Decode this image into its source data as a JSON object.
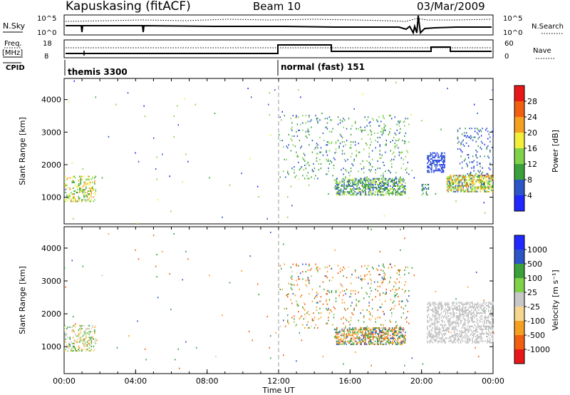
{
  "header": {
    "station": "Kapuskasing (fitACF)",
    "beam": "Beam 10",
    "date": "03/Mar/2009"
  },
  "top_panels": {
    "nsky_label": "N.Sky",
    "nsearch_label": "N.Search",
    "noise_ticks": [
      "10^5",
      "10^0"
    ],
    "freq_label_1": "Freq.",
    "freq_label_2": "[MHz]",
    "freq_ticks": [
      "18",
      "8"
    ],
    "nave_label": "Nave",
    "nave_ticks": [
      "60",
      "0"
    ],
    "cpid_label": "CPID",
    "cpid_segments": [
      {
        "label": "themis 3300",
        "start_hour": 0
      },
      {
        "label": "normal (fast) 151",
        "start_hour": 12
      }
    ]
  },
  "colors": {
    "power": [
      "#1f28ff",
      "#2c55c8",
      "#3aa03a",
      "#7fd24a",
      "#f2ee3a",
      "#f5a020",
      "#f06010",
      "#e81818"
    ],
    "velocity": [
      "#e81818",
      "#f06010",
      "#f5a020",
      "#f7d790",
      "#c8c8c8",
      "#7fd24a",
      "#3aa03a",
      "#2c55c8",
      "#1f28ff"
    ],
    "ground_scatter": "#c0c0c0"
  },
  "chart_data": [
    {
      "type": "heatmap",
      "name": "Power",
      "ylabel": "Slant Range [km]",
      "xlabel": "Time UT",
      "xlim": [
        0,
        24
      ],
      "ylim": [
        180,
        4650
      ],
      "yticks": [
        1000,
        2000,
        3000,
        4000
      ],
      "colorbar": {
        "label": "Power [dB]",
        "ticks": [
          4,
          8,
          12,
          16,
          20,
          24,
          28
        ],
        "range": [
          0,
          32
        ]
      },
      "scatter_regions": [
        {
          "t0": 0.0,
          "t1": 1.8,
          "r0": 850,
          "r1": 1650,
          "density": 0.3,
          "vmin": 8,
          "vmax": 24
        },
        {
          "t0": 15.1,
          "t1": 19.1,
          "r0": 1050,
          "r1": 1550,
          "density": 0.55,
          "vmin": 4,
          "vmax": 18
        },
        {
          "t0": 12.0,
          "t1": 19.3,
          "r0": 1550,
          "r1": 3500,
          "density": 0.07,
          "vmin": 4,
          "vmax": 16
        },
        {
          "t0": 20.3,
          "t1": 21.3,
          "r0": 1750,
          "r1": 2350,
          "density": 0.5,
          "vmin": 2,
          "vmax": 8
        },
        {
          "t0": 21.4,
          "t1": 24.0,
          "r0": 1150,
          "r1": 1650,
          "density": 0.62,
          "vmin": 6,
          "vmax": 26
        },
        {
          "t0": 22.0,
          "t1": 24.0,
          "r0": 1650,
          "r1": 3100,
          "density": 0.12,
          "vmin": 3,
          "vmax": 10
        },
        {
          "t0": 20.0,
          "t1": 20.4,
          "r0": 1050,
          "r1": 1400,
          "density": 0.35,
          "vmin": 6,
          "vmax": 14
        },
        {
          "t0": 0.0,
          "t1": 24.0,
          "r0": 180,
          "r1": 4600,
          "density": 0.0025,
          "vmin": 2,
          "vmax": 20
        }
      ]
    },
    {
      "type": "heatmap",
      "name": "Velocity",
      "ylabel": "Slant Range [km]",
      "xlabel": "Time UT",
      "xlim": [
        0,
        24
      ],
      "ylim": [
        180,
        4650
      ],
      "yticks": [
        1000,
        2000,
        3000,
        4000
      ],
      "xtick_labels": [
        "00:00",
        "04:00",
        "08:00",
        "12:00",
        "16:00",
        "20:00",
        "00:00"
      ],
      "colorbar": {
        "label": "Velocity [m s⁻¹]",
        "ticks": [
          "1000",
          "500",
          "100",
          "25",
          "-25",
          "-100",
          "-500",
          "-1000"
        ]
      },
      "scatter_regions": [
        {
          "t0": 0.0,
          "t1": 1.8,
          "r0": 850,
          "r1": 1650,
          "density": 0.3,
          "vmin": -150,
          "vmax": 150
        },
        {
          "t0": 15.1,
          "t1": 19.1,
          "r0": 1050,
          "r1": 1550,
          "density": 0.55,
          "vmin": -800,
          "vmax": 800
        },
        {
          "t0": 12.0,
          "t1": 19.3,
          "r0": 1550,
          "r1": 3500,
          "density": 0.07,
          "vmin": -900,
          "vmax": 600
        },
        {
          "t0": 20.3,
          "t1": 24.0,
          "r0": 1100,
          "r1": 2350,
          "density": 0.45,
          "vmin": -10,
          "vmax": 10,
          "ground": true
        },
        {
          "t0": 0.0,
          "t1": 24.0,
          "r0": 180,
          "r1": 4600,
          "density": 0.0025,
          "vmin": -900,
          "vmax": 900
        }
      ]
    }
  ]
}
